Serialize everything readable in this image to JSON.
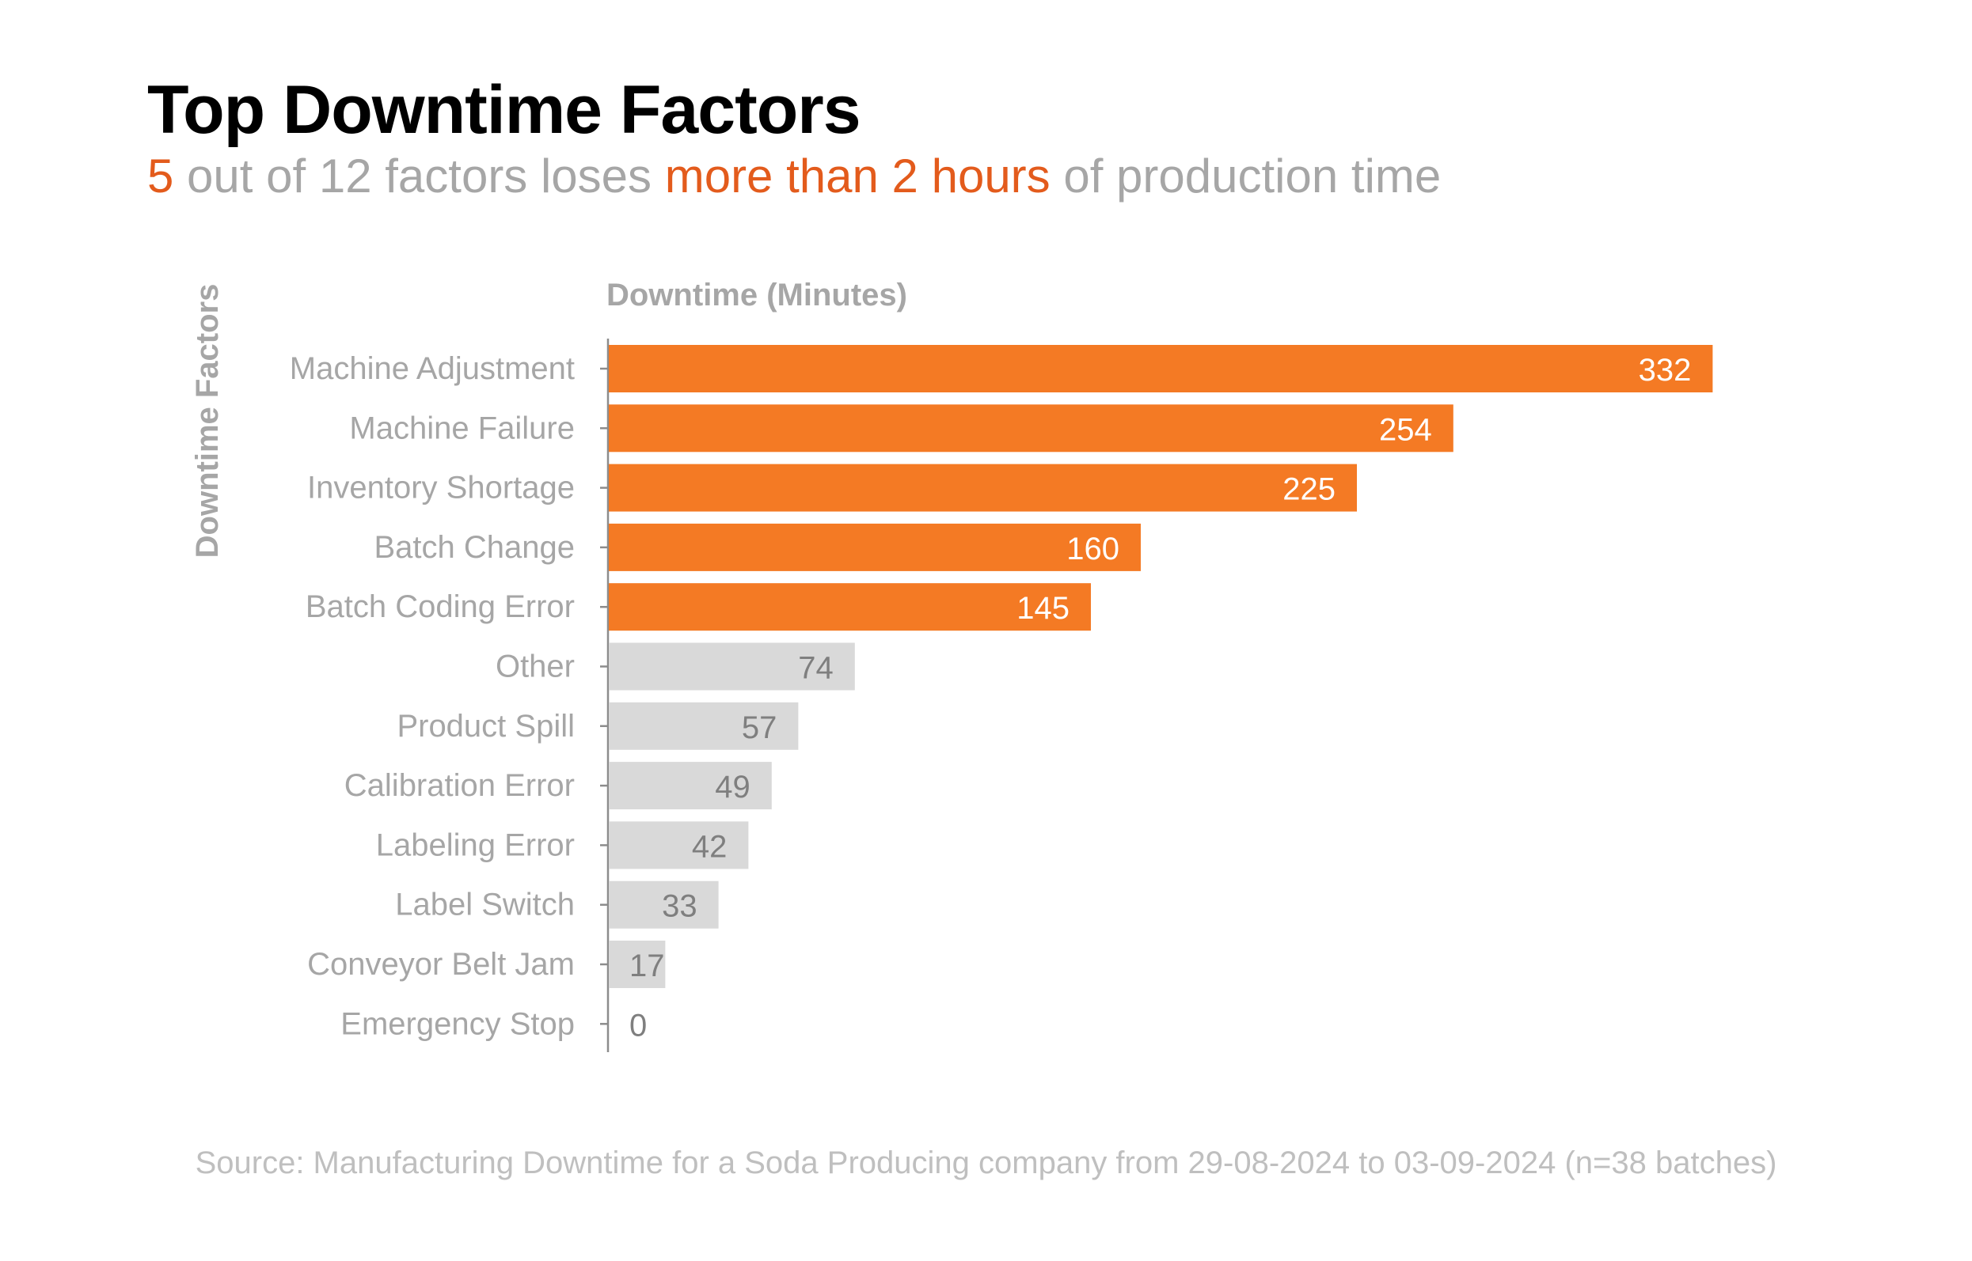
{
  "title": "Top Downtime Factors",
  "subtitle": {
    "count": "5",
    "part1": " out of 12 factors loses ",
    "highlight": "more than 2 hours",
    "part2": " of production time"
  },
  "source": "Source: Manufacturing Downtime for a Soda Producing company from 29-08-2024 to 03-09-2024 (n=38 batches)",
  "colors": {
    "highlight_bar": "#f47a24",
    "normal_bar": "#d9d9d9",
    "highlight_text": "#e35b1c",
    "muted_text": "#a6a6a6",
    "bar_label_on_highlight": "#ffffff",
    "bar_label_on_normal": "#7f7f7f"
  },
  "chart_data": {
    "type": "bar",
    "orientation": "horizontal",
    "title": "Top Downtime Factors",
    "xlabel": "Downtime (Minutes)",
    "ylabel": "Downtime Factors",
    "xlim": [
      0,
      350
    ],
    "grid": false,
    "legend": "none",
    "highlight_threshold_minutes": 120,
    "categories": [
      "Machine Adjustment",
      "Machine Failure",
      "Inventory Shortage",
      "Batch Change",
      "Batch Coding Error",
      "Other",
      "Product Spill",
      "Calibration Error",
      "Labeling Error",
      "Label Switch",
      "Conveyor Belt Jam",
      "Emergency Stop"
    ],
    "values": [
      332,
      254,
      225,
      160,
      145,
      74,
      57,
      49,
      42,
      33,
      17,
      0
    ],
    "highlighted": [
      true,
      true,
      true,
      true,
      true,
      false,
      false,
      false,
      false,
      false,
      false,
      false
    ]
  }
}
